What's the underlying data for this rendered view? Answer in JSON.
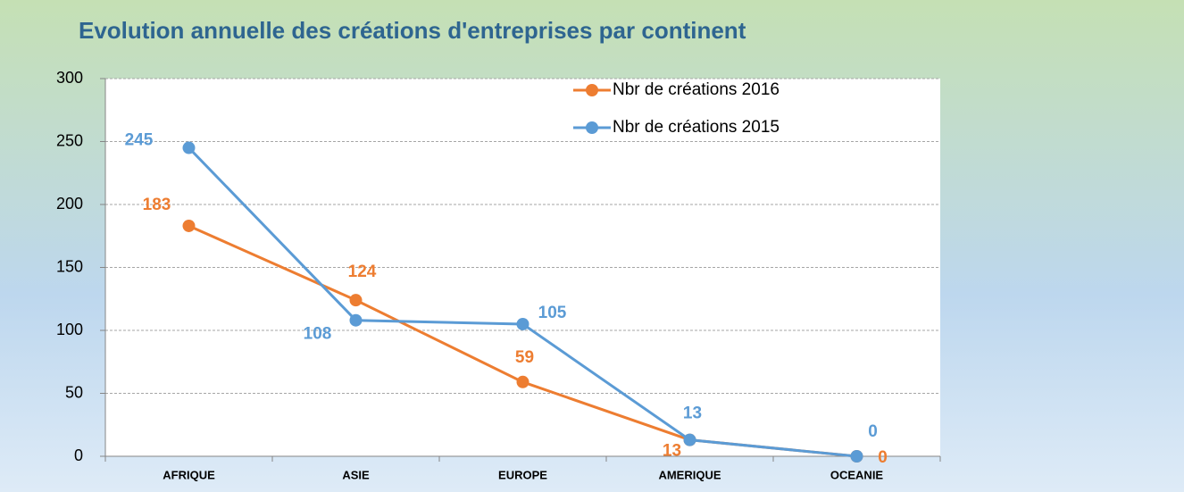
{
  "chart_data": {
    "type": "line",
    "title": "Evolution annuelle des créations d'entreprises par continent",
    "categories": [
      "AFRIQUE",
      "ASIE",
      "EUROPE",
      "AMERIQUE",
      "OCEANIE"
    ],
    "series": [
      {
        "name": "Nbr de créations 2016",
        "color": "#ed7d31",
        "values": [
          183,
          124,
          59,
          13,
          0
        ]
      },
      {
        "name": "Nbr de créations 2015",
        "color": "#5b9bd5",
        "values": [
          245,
          108,
          105,
          13,
          0
        ]
      }
    ],
    "ylim": [
      0,
      300
    ],
    "yticks": [
      0,
      50,
      100,
      150,
      200,
      250,
      300
    ],
    "grid": true,
    "legend": "top-right"
  }
}
